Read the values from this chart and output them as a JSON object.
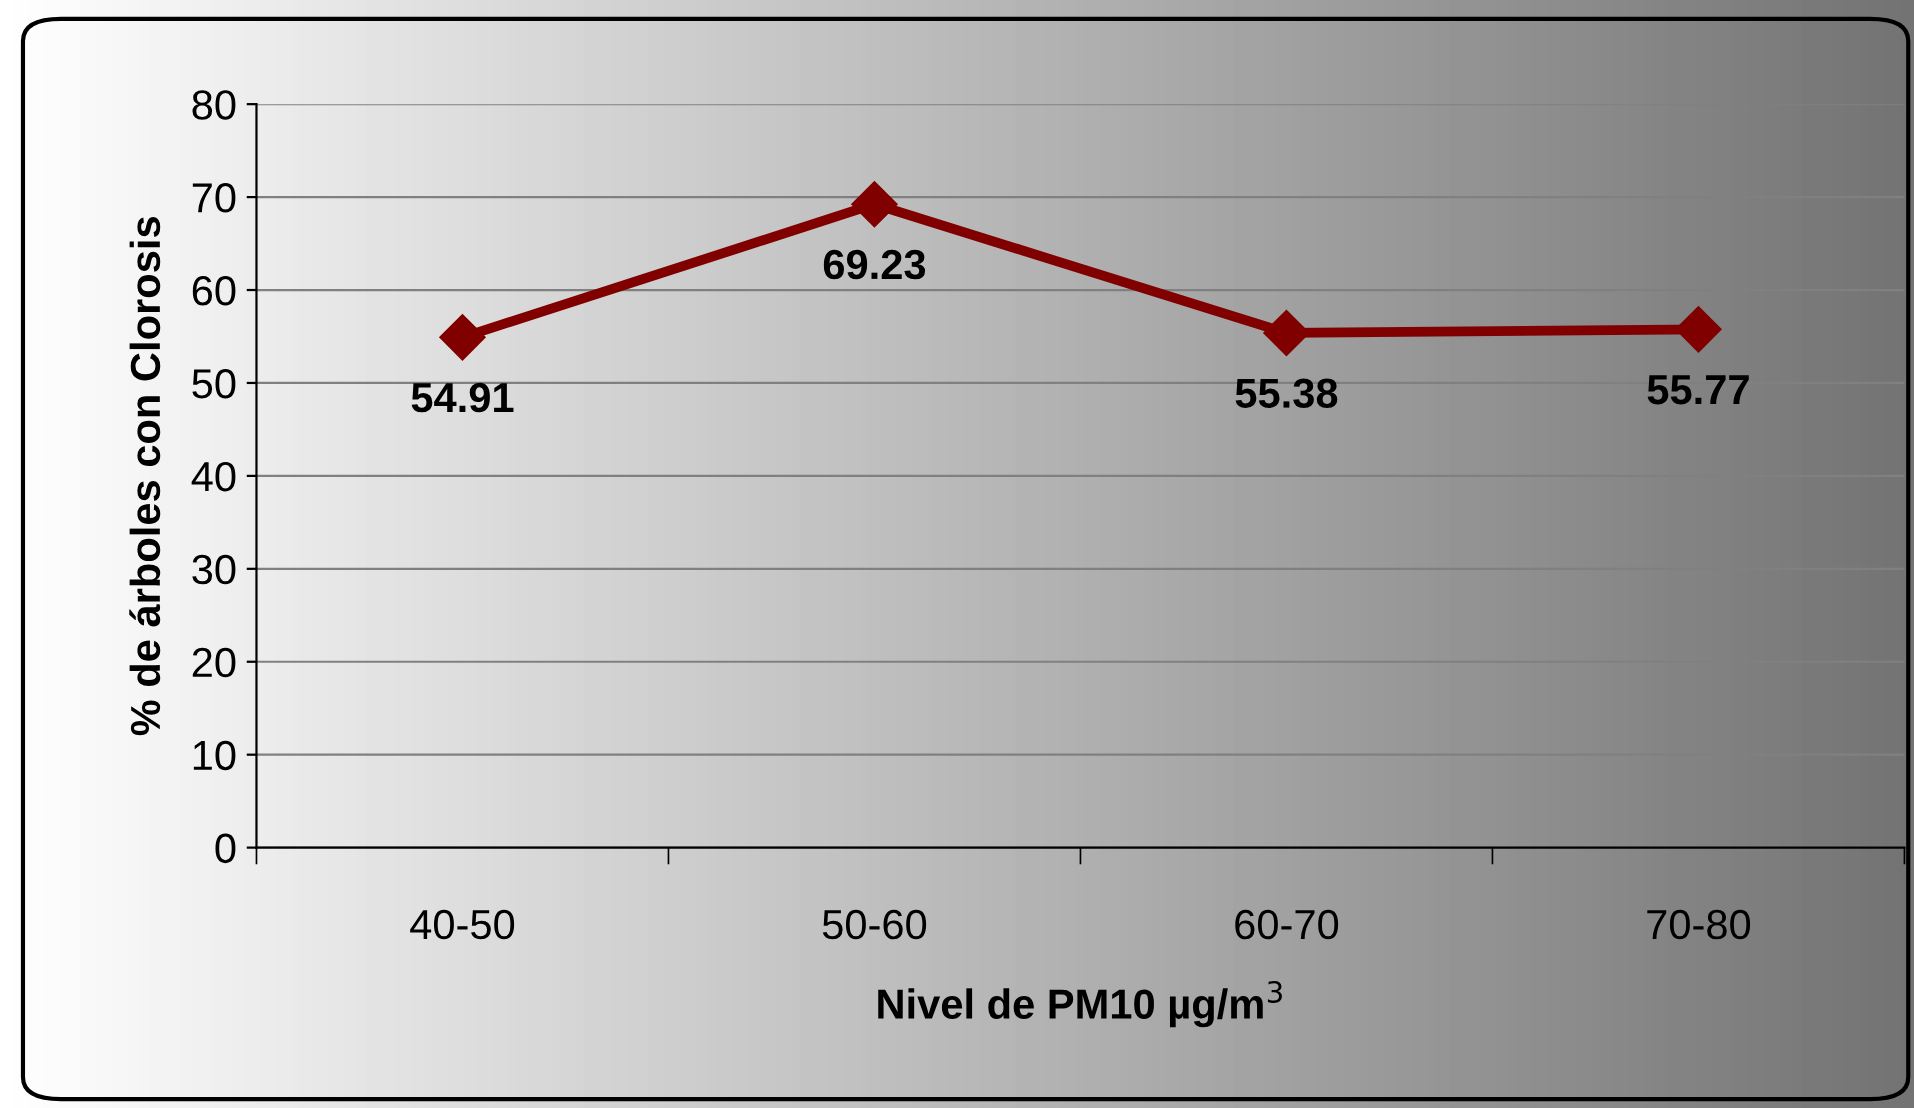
{
  "chart_data": {
    "type": "line",
    "xlabel": "Nivel de PM10 µg/m$^{3}$",
    "ylabel": "% de árboles con Clorosis",
    "categories": [
      "40-50",
      "50-60",
      "60-70",
      "70-80"
    ],
    "series": [
      {
        "color": "#800000",
        "values": [
          54.91,
          69.23,
          55.38,
          55.77
        ]
      }
    ],
    "ylim": [
      0,
      80
    ],
    "yticks": [
      0,
      10,
      20,
      30,
      40,
      50,
      60,
      70,
      80
    ],
    "grid": "y",
    "marker": "diamond",
    "line_style": "solid",
    "data_labels": true
  }
}
